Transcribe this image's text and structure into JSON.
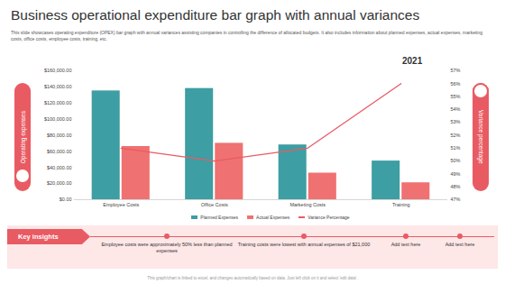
{
  "chart_data": {
    "type": "bar",
    "title": "Business operational expenditure bar graph with annual variances",
    "subtitle": "This slide showcases operating expenditure (OPEX) bar graph with annual variances assisting companies in controlling the difference of allocated budgets. It also includes information about planned expenses, actual expenses, marketing costs, office costs, employee costs, training, etc.",
    "annotation": "2021",
    "ylabel": "Operating expenses",
    "y2label": "Variance percentage",
    "categories": [
      "Employee Costs",
      "Office Costs",
      "Marketing Costs",
      "Training"
    ],
    "series": [
      {
        "name": "Planned Expenses",
        "color": "#3d9ea3",
        "type": "bar",
        "values": [
          135000,
          138000,
          68000,
          48000
        ]
      },
      {
        "name": "Actual Expenses",
        "color": "#f07171",
        "type": "bar",
        "values": [
          66000,
          70000,
          33000,
          21000
        ]
      },
      {
        "name": "Variance Percentage",
        "color": "#e95b63",
        "type": "line",
        "axis": "y2",
        "values": [
          51,
          50,
          51,
          56
        ]
      }
    ],
    "ylim": [
      0,
      160000
    ],
    "yticks": [
      {
        "value": 0,
        "label": "$0.00"
      },
      {
        "value": 20000,
        "label": "$20,000.00"
      },
      {
        "value": 40000,
        "label": "$40,000.00"
      },
      {
        "value": 60000,
        "label": "$60,000.00"
      },
      {
        "value": 80000,
        "label": "$80,000.00"
      },
      {
        "value": 100000,
        "label": "$100,000.00"
      },
      {
        "value": 120000,
        "label": "$120,000.00"
      },
      {
        "value": 140000,
        "label": "$140,000.00"
      },
      {
        "value": 160000,
        "label": "$160,000.00"
      }
    ],
    "y2lim": [
      47,
      57
    ],
    "y2ticks": [
      {
        "value": 47,
        "label": "47%"
      },
      {
        "value": 48,
        "label": "48%"
      },
      {
        "value": 49,
        "label": "49%"
      },
      {
        "value": 50,
        "label": "50%"
      },
      {
        "value": 51,
        "label": "51%"
      },
      {
        "value": 52,
        "label": "52%"
      },
      {
        "value": 53,
        "label": "53%"
      },
      {
        "value": 54,
        "label": "54%"
      },
      {
        "value": 55,
        "label": "55%"
      },
      {
        "value": 56,
        "label": "56%"
      },
      {
        "value": 57,
        "label": "57%"
      }
    ],
    "grid": false,
    "legend": "bottom"
  },
  "page": {
    "key_insights_title": "Key insights",
    "insights": [
      "Employee costs were approximately 50% less than planned expenses",
      "Training costs were lowest with annual expenses of $21,000",
      "Add text here",
      "Add text here"
    ],
    "footer": "This graph/chart is linked to excel, and changes automatically based on data. Just left click on it and select 'edit data'."
  }
}
